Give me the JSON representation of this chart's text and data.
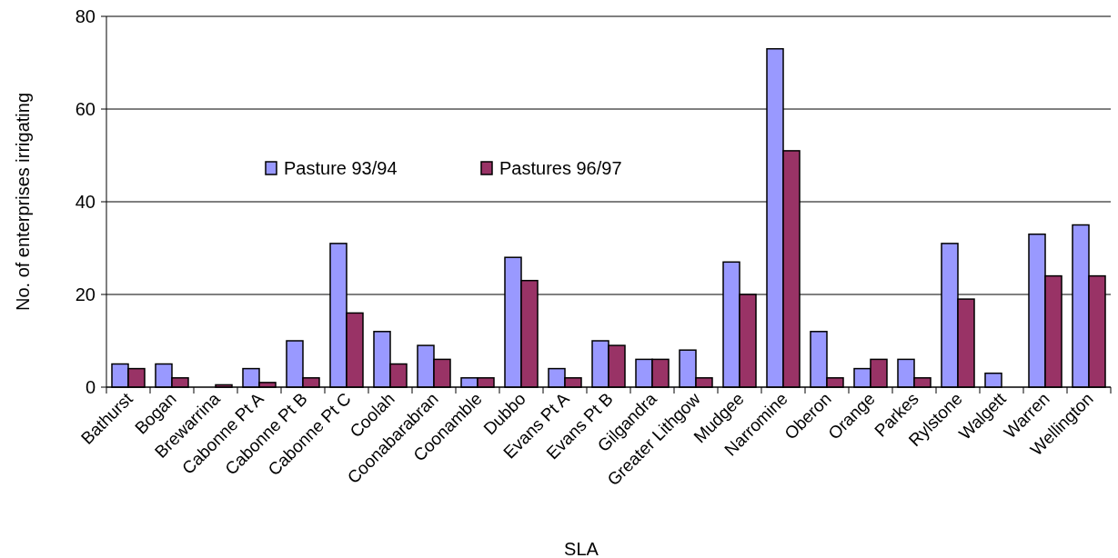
{
  "chart_data": {
    "type": "bar",
    "xlabel": "SLA",
    "ylabel": "No. of enterprises irrigating",
    "categories": [
      "Bathurst",
      "Bogan",
      "Brewarrina",
      "Cabonne Pt A",
      "Cabonne Pt B",
      "Cabonne Pt C",
      "Coolah",
      "Coonabarabran",
      "Coonamble",
      "Dubbo",
      "Evans Pt A",
      "Evans Pt B",
      "Gilgandra",
      "Greater Lithgow",
      "Mudgee",
      "Narromine",
      "Oberon",
      "Orange",
      "Parkes",
      "Rylstone",
      "Walgett",
      "Warren",
      "Wellington"
    ],
    "series": [
      {
        "name": "Pasture 93/94",
        "color": "#9999ff",
        "values": [
          5,
          5,
          0,
          4,
          10,
          31,
          12,
          9,
          2,
          28,
          4,
          10,
          6,
          8,
          27,
          73,
          12,
          4,
          6,
          31,
          3,
          33,
          35
        ]
      },
      {
        "name": "Pastures 96/97",
        "color": "#993366",
        "values": [
          4,
          2,
          0.5,
          1,
          2,
          16,
          5,
          6,
          2,
          23,
          2,
          9,
          6,
          2,
          20,
          51,
          2,
          6,
          2,
          19,
          0,
          24,
          24
        ]
      }
    ],
    "ylim": [
      0,
      80
    ],
    "yticks": [
      0,
      20,
      40,
      60,
      80
    ],
    "grid": "y",
    "legend": "top left"
  }
}
